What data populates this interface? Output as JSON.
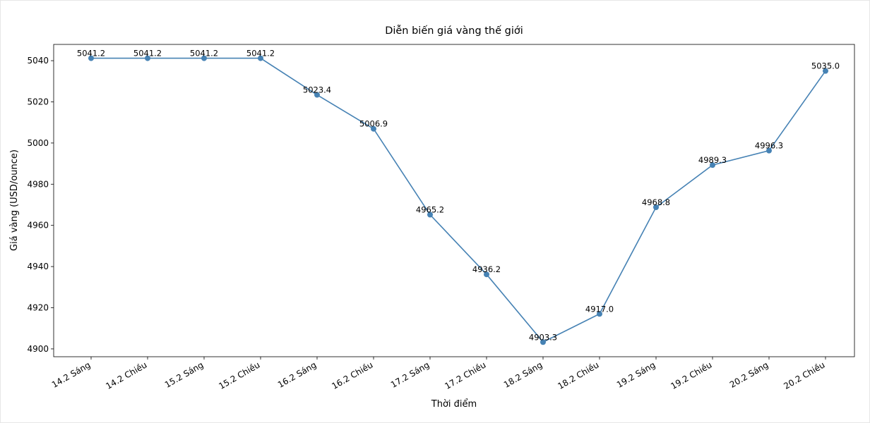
{
  "chart_data": {
    "type": "line",
    "title": "Diễn biến giá vàng thế giới",
    "x_label": "Thời điểm",
    "y_label": "Giá vàng (USD/ounce)",
    "categories": [
      "14.2 Sáng",
      "14.2 Chiều",
      "15.2 Sáng",
      "15.2 Chiều",
      "16.2 Sáng",
      "16.2 Chiều",
      "17.2 Sáng",
      "17.2 Chiều",
      "18.2 Sáng",
      "18.2 Chiều",
      "19.2 Sáng",
      "19.2 Chiều",
      "20.2 Sáng",
      "20.2 Chiều"
    ],
    "values": [
      5041.2,
      5041.2,
      5041.2,
      5041.2,
      5023.4,
      5006.9,
      4965.2,
      4936.2,
      4903.3,
      4917.0,
      4968.8,
      4989.3,
      4996.3,
      5035.0
    ],
    "value_labels": [
      "5041.2",
      "5041.2",
      "5041.2",
      "5041.2",
      "5023.4",
      "5006.9",
      "4965.2",
      "4936.2",
      "4903.3",
      "4917.0",
      "4968.8",
      "4989.3",
      "4996.3",
      "5035.0"
    ],
    "color": "#4682b4",
    "ylim": [
      4896.2,
      5047.9
    ],
    "yticks": [
      4900,
      4920,
      4940,
      4960,
      4980,
      5000,
      5020,
      5040
    ],
    "grid": false
  }
}
